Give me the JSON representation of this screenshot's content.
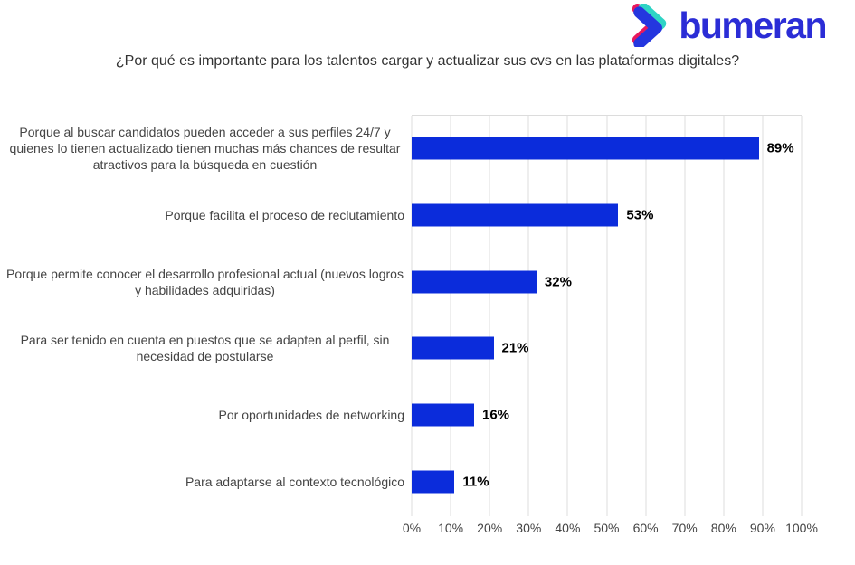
{
  "logo": {
    "wordmark": "bumeran",
    "wordmark_color": "#2B2DD6",
    "icon_colors": {
      "pink": "#E8185D",
      "teal": "#2FD4C5",
      "blue": "#2436DF"
    }
  },
  "chart_data": {
    "type": "bar",
    "orientation": "horizontal",
    "title": "¿Por qué es importante para los talentos cargar y actualizar sus cvs en las plataformas digitales?",
    "categories": [
      "Porque al buscar candidatos pueden acceder a sus perfiles 24/7 y quienes lo tienen actualizado tienen muchas más chances de resultar atractivos para la búsqueda en cuestión",
      "Porque facilita el proceso de reclutamiento",
      "Porque permite conocer el desarrollo profesional actual (nuevos logros y habilidades adquiridas)",
      "Para ser tenido en cuenta en puestos que se adapten al perfil, sin necesidad de postularse",
      "Por oportunidades de networking",
      "Para adaptarse al contexto tecnológico"
    ],
    "values": [
      89,
      53,
      32,
      21,
      16,
      11
    ],
    "value_labels": [
      "89%",
      "53%",
      "32%",
      "21%",
      "16%",
      "11%"
    ],
    "xlim": [
      0,
      100
    ],
    "xticks": [
      0,
      10,
      20,
      30,
      40,
      50,
      60,
      70,
      80,
      90,
      100
    ],
    "xtick_labels": [
      "0%",
      "10%",
      "20%",
      "30%",
      "40%",
      "50%",
      "60%",
      "70%",
      "80%",
      "90%",
      "100%"
    ],
    "bar_color": "#0B2CDB",
    "gridline_color": "#DCDCDC",
    "grid": "vertical",
    "legend": "none"
  }
}
